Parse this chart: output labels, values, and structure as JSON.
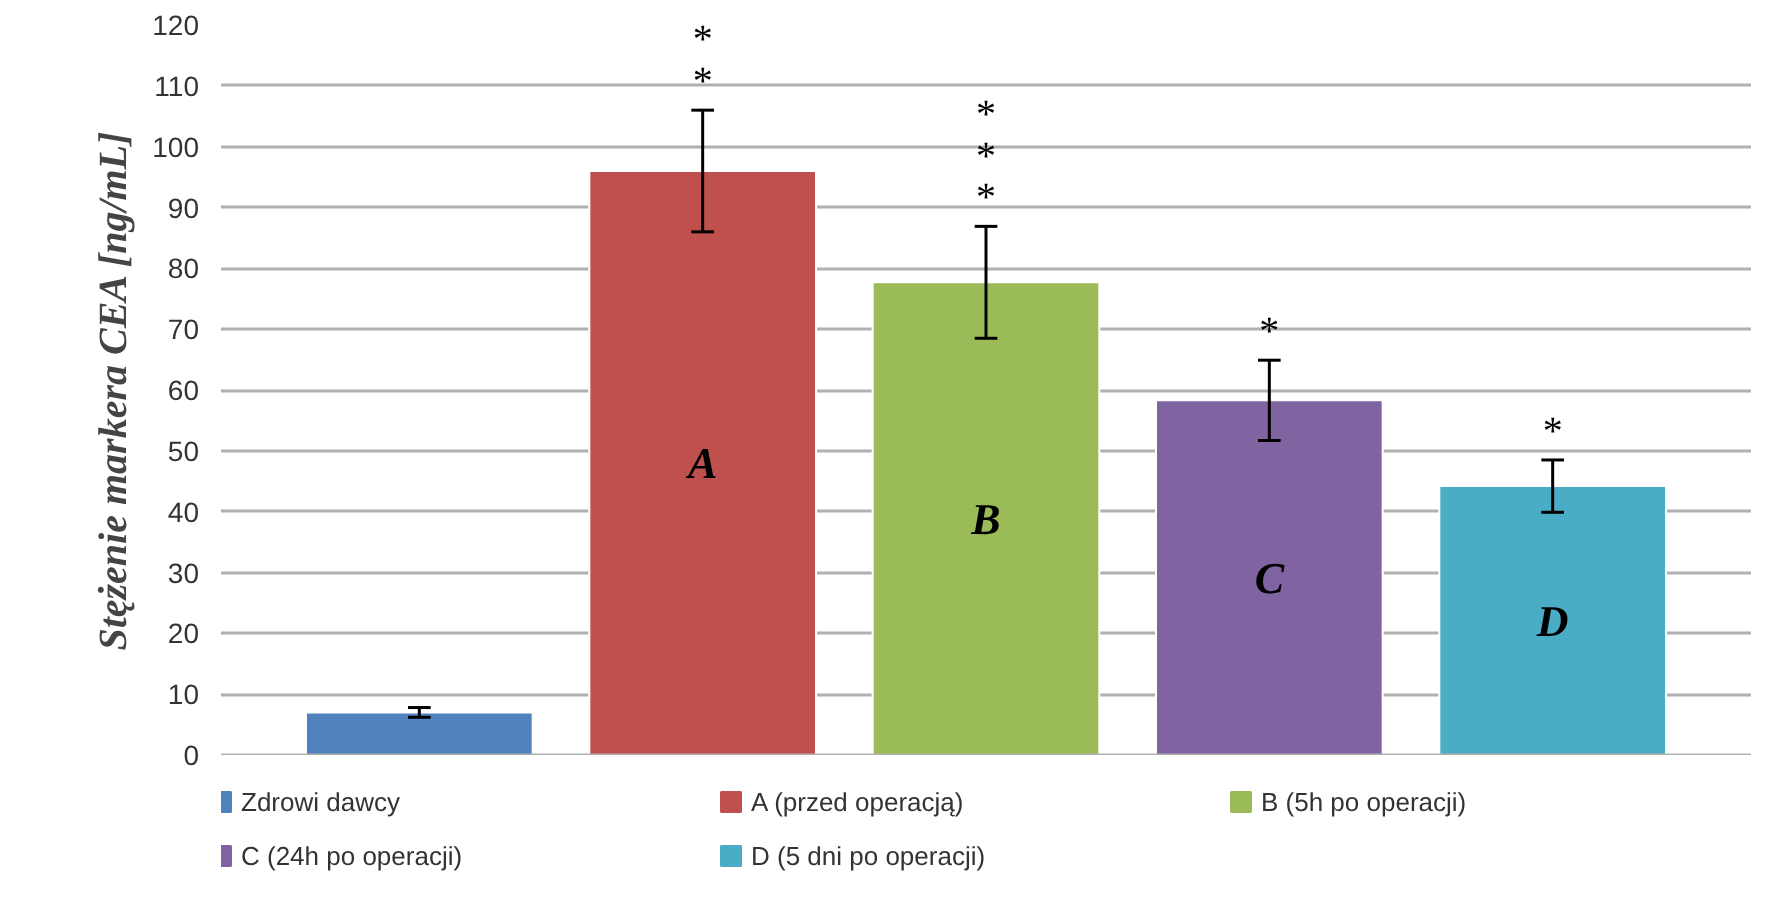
{
  "chart_data": {
    "type": "bar",
    "ylabel": "Stężenie markera CEA [ng/mL]",
    "categories": [
      null
    ],
    "series": [
      {
        "name": "Zdrowi dawcy",
        "color": "#4f81bd",
        "values": [
          7
        ],
        "errors": [
          0.8
        ]
      },
      {
        "name": "A (przed operacją)",
        "color": "#c0504d",
        "values": [
          96
        ],
        "errors": [
          10
        ]
      },
      {
        "name": "B (5h po operacji)",
        "color": "#9bbb59",
        "values": [
          77.7
        ],
        "errors": [
          9.2
        ]
      },
      {
        "name": "C (24h po operacji)",
        "color": "#8064a2",
        "values": [
          58.3
        ],
        "errors": [
          6.6
        ]
      },
      {
        "name": "D (5 dni po operacji)",
        "color": "#4bacc6",
        "values": [
          44.2
        ],
        "errors": [
          4.3
        ]
      }
    ],
    "annotations": [
      "A",
      "*\n*",
      "B",
      "*\n*\n*",
      "C",
      "*",
      "D",
      "*"
    ],
    "ylim": [
      0,
      120
    ],
    "yticks": [
      0,
      10,
      20,
      30,
      40,
      50,
      60,
      70,
      80,
      90,
      100,
      110,
      120
    ],
    "grid": "y",
    "legend": "bottom"
  }
}
